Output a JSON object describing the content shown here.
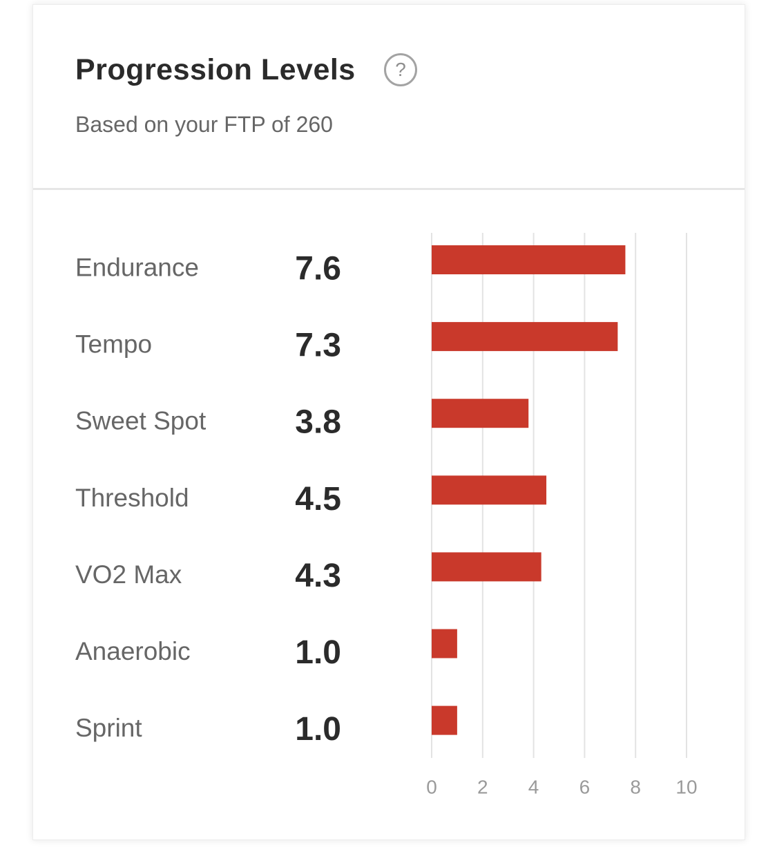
{
  "header": {
    "title": "Progression Levels",
    "help_icon": "question-circle-icon",
    "help_glyph": "?",
    "subtitle": "Based on your FTP of 260"
  },
  "colors": {
    "bar": "#c9392b",
    "grid": "#e3e3e3",
    "label": "#666666",
    "value": "#2b2b2b",
    "tick": "#9a9a9a"
  },
  "chart_data": {
    "type": "bar",
    "orientation": "horizontal",
    "title": "Progression Levels",
    "subtitle": "Based on your FTP of 260",
    "categories": [
      "Endurance",
      "Tempo",
      "Sweet Spot",
      "Threshold",
      "VO2 Max",
      "Anaerobic",
      "Sprint"
    ],
    "values": [
      7.6,
      7.3,
      3.8,
      4.5,
      4.3,
      1.0,
      1.0
    ],
    "value_labels": [
      "7.6",
      "7.3",
      "3.8",
      "4.5",
      "4.3",
      "1.0",
      "1.0"
    ],
    "xlim": [
      0,
      10
    ],
    "xticks": [
      0,
      2,
      4,
      6,
      8,
      10
    ],
    "xtick_labels": [
      "0",
      "2",
      "4",
      "6",
      "8",
      "10"
    ],
    "grid": true,
    "legend": "none"
  }
}
